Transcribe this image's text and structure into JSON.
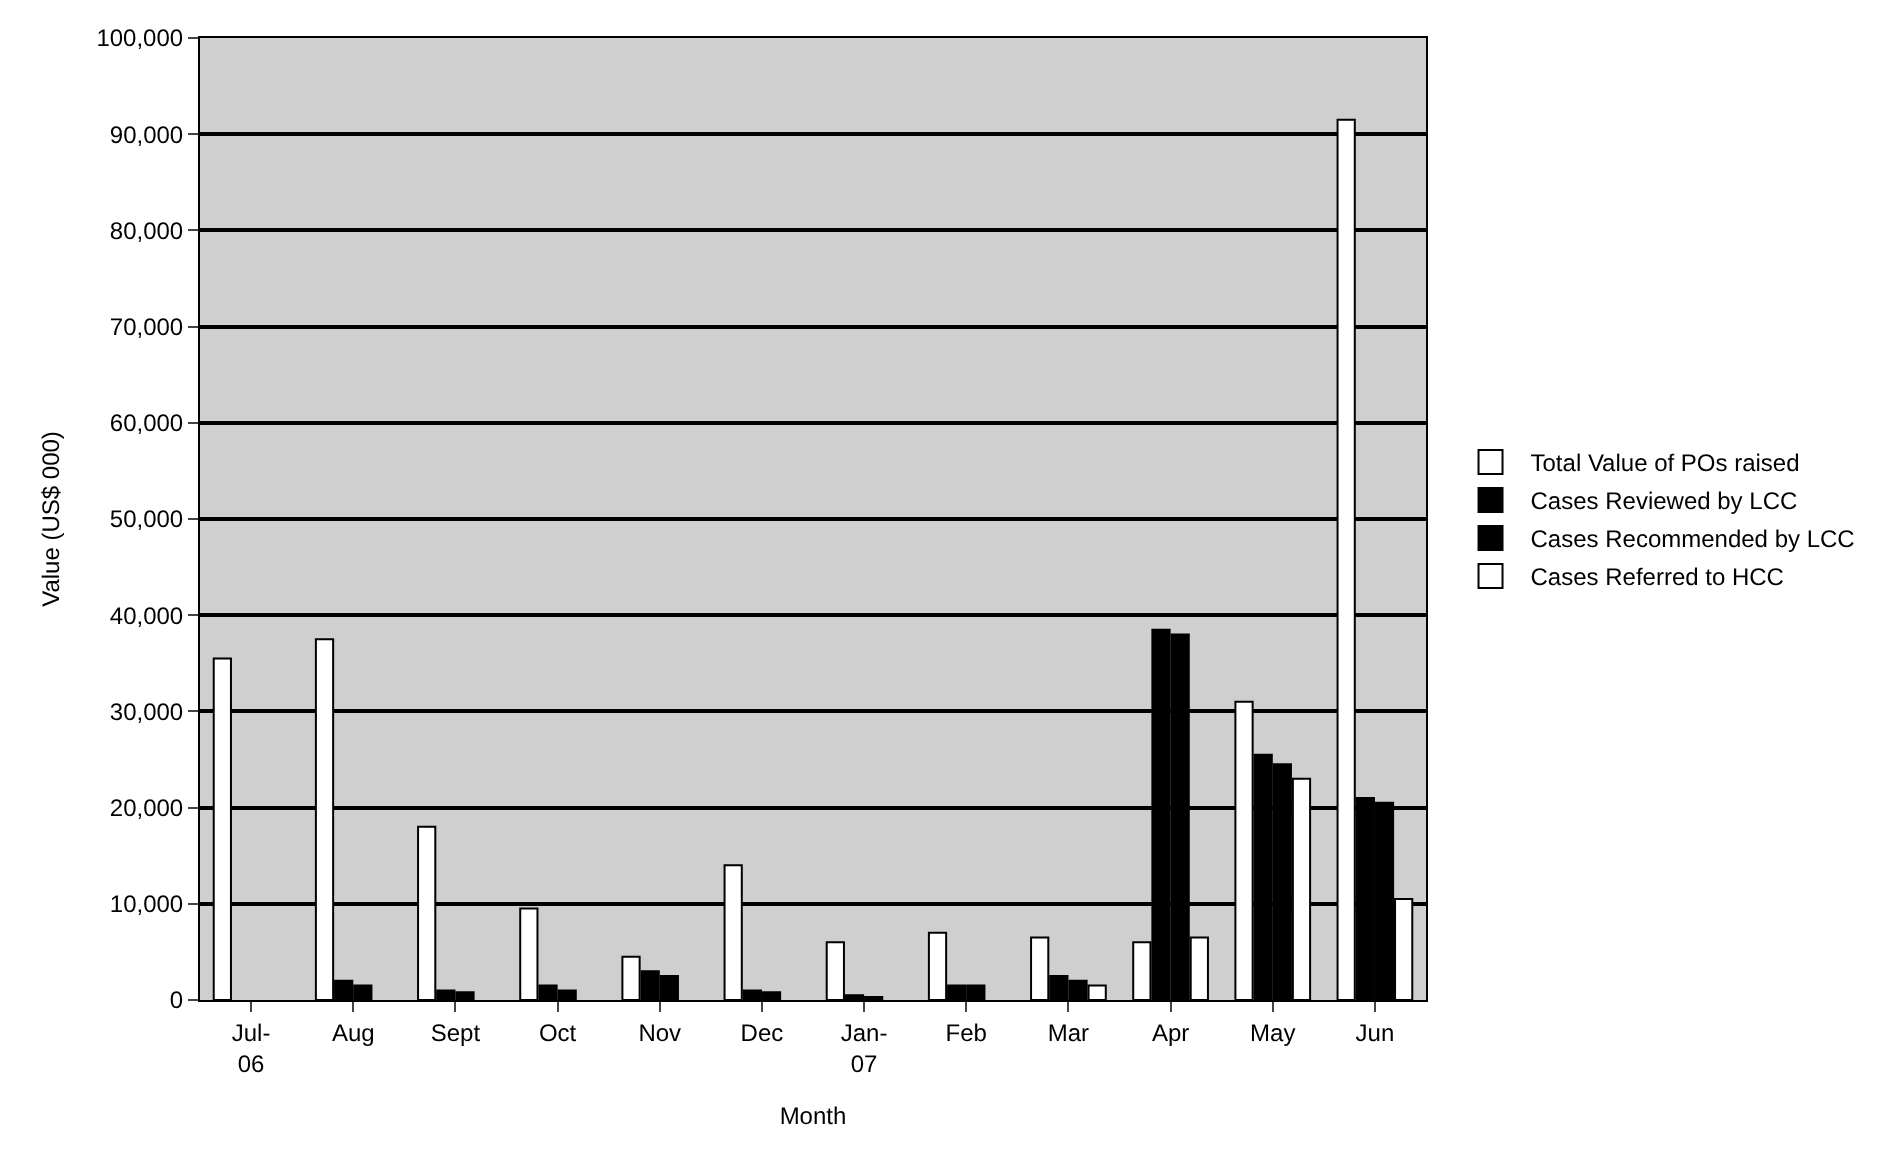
{
  "chart_data": {
    "type": "bar",
    "xlabel": "Month",
    "ylabel": "Value (US$ 000)",
    "categories": [
      "Jul-06",
      "Aug",
      "Sept",
      "Oct",
      "Nov",
      "Dec",
      "Jan-07",
      "Feb",
      "Mar",
      "Apr",
      "May",
      "Jun"
    ],
    "series": [
      {
        "name": "Total Value of POs raised",
        "color": "#ffffff",
        "values": [
          35500,
          37500,
          18000,
          9500,
          4500,
          14000,
          6000,
          7000,
          6500,
          6000,
          31000,
          91500
        ]
      },
      {
        "name": "Cases Reviewed by LCC",
        "color": "#000000",
        "values": [
          null,
          2000,
          1000,
          1500,
          3000,
          1000,
          500,
          1500,
          2500,
          38500,
          25500,
          21000
        ]
      },
      {
        "name": "Cases Recommended by LCC",
        "color": "#000000",
        "values": [
          null,
          1500,
          800,
          1000,
          2500,
          800,
          300,
          1500,
          2000,
          38000,
          24500,
          20500
        ]
      },
      {
        "name": "Cases Referred to HCC",
        "color": "#ffffff",
        "values": [
          null,
          null,
          null,
          null,
          null,
          null,
          null,
          null,
          1500,
          6500,
          23000,
          10500
        ]
      }
    ],
    "ylim": [
      0,
      100000
    ],
    "yticks": [
      {
        "value": 0,
        "label": "0"
      },
      {
        "value": 10000,
        "label": "10,000"
      },
      {
        "value": 20000,
        "label": "20,000"
      },
      {
        "value": 30000,
        "label": "30,000"
      },
      {
        "value": 40000,
        "label": "40,000"
      },
      {
        "value": 50000,
        "label": "50,000"
      },
      {
        "value": 60000,
        "label": "60,000"
      },
      {
        "value": 70000,
        "label": "70,000"
      },
      {
        "value": 80000,
        "label": "80,000"
      },
      {
        "value": 90000,
        "label": "90,000"
      },
      {
        "value": 100000,
        "label": "100,000"
      }
    ],
    "grid": "y",
    "legend": "right"
  }
}
